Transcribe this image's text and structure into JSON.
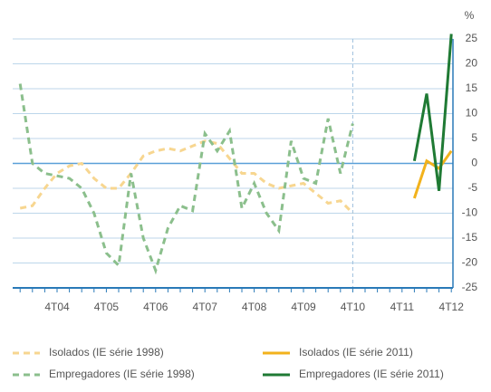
{
  "chart_data": {
    "type": "line",
    "y_label": "%",
    "categories": [
      null,
      null,
      null,
      "4T04",
      null,
      null,
      null,
      "4T05",
      null,
      null,
      null,
      "4T06",
      null,
      null,
      null,
      "4T07",
      null,
      null,
      null,
      "4T08",
      null,
      null,
      null,
      "4T09",
      null,
      null,
      null,
      "4T10",
      null,
      null,
      null,
      "4T11",
      null,
      null,
      null,
      "4T12"
    ],
    "series": [
      {
        "name": "Isolados (IE série 1998)",
        "color": "#f7d690",
        "dashed": true,
        "values": [
          -9,
          -8.5,
          -5,
          -2,
          -0.5,
          0,
          -3,
          -5,
          -5,
          -2,
          1.5,
          2.5,
          3,
          2.5,
          3.5,
          4.5,
          4,
          1,
          -2,
          -2,
          -4,
          -5,
          -4.5,
          -4,
          -6,
          -8,
          -7.5,
          -10,
          null,
          null,
          null,
          null,
          null,
          null,
          null,
          null
        ]
      },
      {
        "name": "Isolados (IE série 2011)",
        "color": "#f2b21c",
        "dashed": false,
        "values": [
          null,
          null,
          null,
          null,
          null,
          null,
          null,
          null,
          null,
          null,
          null,
          null,
          null,
          null,
          null,
          null,
          null,
          null,
          null,
          null,
          null,
          null,
          null,
          null,
          null,
          null,
          null,
          null,
          null,
          null,
          null,
          null,
          -7,
          0.5,
          -1,
          2.5
        ]
      },
      {
        "name": "Empregadores (IE série 1998)",
        "color": "#8bbf8c",
        "dashed": true,
        "values": [
          16,
          0,
          -2,
          -2.5,
          -3,
          -5,
          -10,
          -18,
          -20.5,
          -2,
          -15,
          -21.5,
          -13,
          -8.5,
          -9.5,
          6,
          2.5,
          6.5,
          -9,
          -4,
          -10,
          -13.5,
          4.5,
          -3,
          -4,
          9,
          -2,
          8,
          null,
          null,
          null,
          null,
          null,
          null,
          null,
          null
        ]
      },
      {
        "name": "Empregadores (IE série 2011)",
        "color": "#1f7a34",
        "dashed": false,
        "values": [
          null,
          null,
          null,
          null,
          null,
          null,
          null,
          null,
          null,
          null,
          null,
          null,
          null,
          null,
          null,
          null,
          null,
          null,
          null,
          null,
          null,
          null,
          null,
          null,
          null,
          null,
          null,
          null,
          null,
          null,
          null,
          null,
          0.5,
          14,
          -5.5,
          26
        ]
      }
    ],
    "ylim": [
      -25,
      25
    ],
    "yticks": [
      -25,
      -20,
      -15,
      -10,
      -5,
      0,
      5,
      10,
      15,
      20,
      25
    ],
    "grid": true
  }
}
